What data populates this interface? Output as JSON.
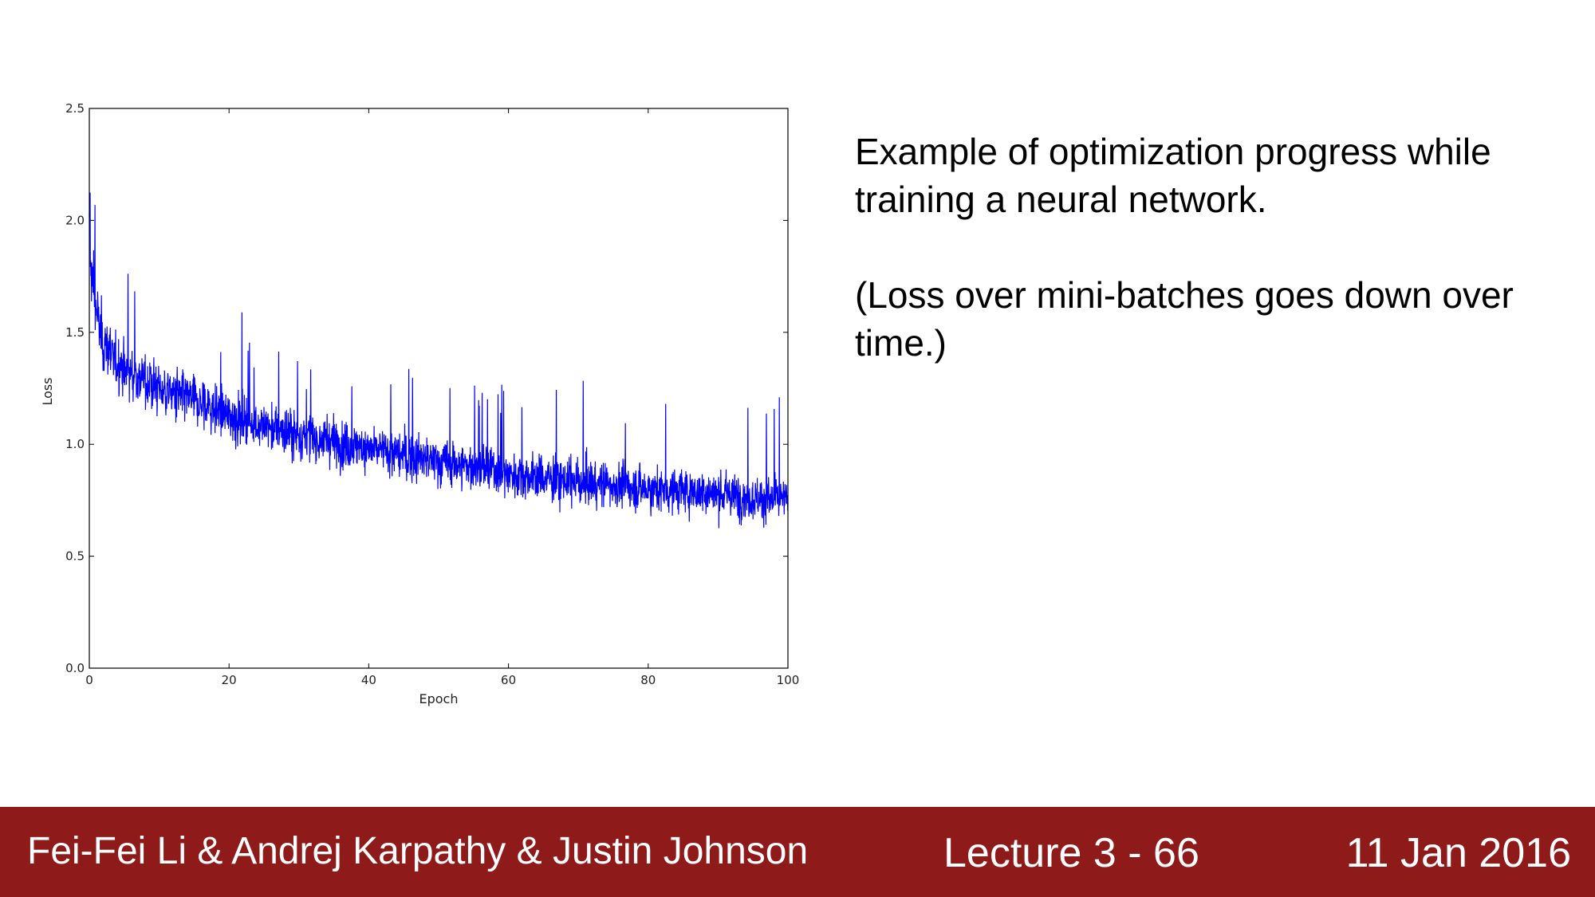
{
  "chart_data": {
    "type": "line",
    "xlabel": "Epoch",
    "ylabel": "Loss",
    "xlim": [
      0,
      100
    ],
    "ylim": [
      0.0,
      2.5
    ],
    "x_ticks": [
      "0",
      "20",
      "40",
      "60",
      "80",
      "100"
    ],
    "y_ticks": [
      "0.0",
      "0.5",
      "1.0",
      "1.5",
      "2.0",
      "2.5"
    ],
    "grid": false,
    "series": [
      {
        "color": "#0000ff",
        "trend": {
          "x": [
            0,
            1,
            2,
            5,
            10,
            15,
            20,
            25,
            30,
            35,
            40,
            45,
            50,
            55,
            60,
            65,
            70,
            75,
            80,
            85,
            90,
            95,
            100
          ],
          "y": [
            1.85,
            1.6,
            1.45,
            1.33,
            1.25,
            1.19,
            1.13,
            1.08,
            1.04,
            1.01,
            0.98,
            0.95,
            0.92,
            0.9,
            0.87,
            0.85,
            0.83,
            0.82,
            0.8,
            0.79,
            0.78,
            0.76,
            0.75
          ]
        },
        "noise_band": 0.28,
        "min": 0.46,
        "max": 2.15
      }
    ]
  },
  "text": {
    "paragraph1": "Example of optimization progress while training a neural network.",
    "paragraph2": "(Loss over mini-batches goes down over time.)"
  },
  "footer": {
    "authors": "Fei-Fei Li & Andrej Karpathy & Justin Johnson",
    "lecture": "Lecture 3 - 66",
    "date": "11 Jan 2016",
    "background": "#8f1a1a"
  }
}
